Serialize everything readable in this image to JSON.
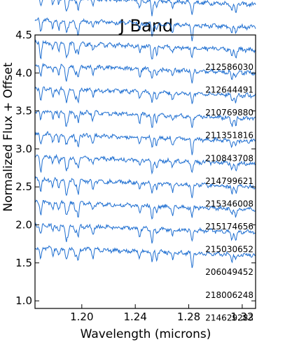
{
  "chart_data": {
    "type": "line",
    "title": "J Band",
    "xlabel": "Wavelength (microns)",
    "ylabel": "Normalized Flux + Offset",
    "xlim": [
      1.165,
      1.33
    ],
    "ylim": [
      0.9,
      4.5
    ],
    "x_ticks": [
      1.2,
      1.24,
      1.28,
      1.32
    ],
    "x_tick_labels": [
      "1.20",
      "1.24",
      "1.28",
      "1.32"
    ],
    "y_ticks": [
      1.0,
      1.5,
      2.0,
      2.5,
      3.0,
      3.5,
      4.0,
      4.5
    ],
    "y_tick_labels": [
      "1.0",
      "1.5",
      "2.0",
      "2.5",
      "3.0",
      "3.5",
      "4.0",
      "4.5"
    ],
    "grid": false,
    "legend": "none",
    "line_color": "#1f6fd1",
    "spectrum_continuum_range": [
      1.0,
      0.9
    ],
    "series": [
      {
        "name": "212586030",
        "offset": 4.0
      },
      {
        "name": "212644491",
        "offset": 3.7
      },
      {
        "name": "210769880",
        "offset": 3.4
      },
      {
        "name": "211351816",
        "offset": 3.1
      },
      {
        "name": "210843708",
        "offset": 2.8
      },
      {
        "name": "214799621",
        "offset": 2.5
      },
      {
        "name": "215346008",
        "offset": 2.2
      },
      {
        "name": "215174656",
        "offset": 1.9
      },
      {
        "name": "215030652",
        "offset": 1.6
      },
      {
        "name": "206049452",
        "offset": 1.3
      },
      {
        "name": "218006248",
        "offset": 1.0
      },
      {
        "name": "214629283",
        "offset": 0.7
      }
    ],
    "absorption_lines_microns": [
      1.1693,
      1.1783,
      1.1828,
      1.1883,
      1.1896,
      1.1953,
      1.1973,
      1.2083,
      1.2433,
      1.2526,
      1.256,
      1.2679,
      1.2825,
      1.3123,
      1.3152
    ]
  }
}
